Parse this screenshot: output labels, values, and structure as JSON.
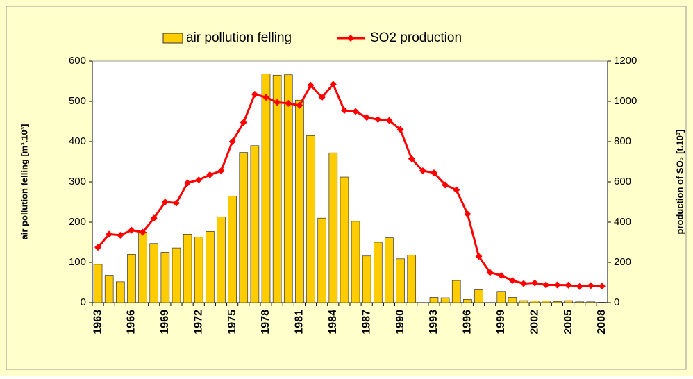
{
  "chart_data": {
    "type": "bar_line",
    "categories": [
      "1963",
      null,
      null,
      "1966",
      null,
      null,
      "1969",
      null,
      null,
      "1972",
      null,
      null,
      "1975",
      null,
      null,
      "1978",
      null,
      null,
      "1981",
      null,
      null,
      "1984",
      null,
      null,
      "1987",
      null,
      null,
      "1990",
      null,
      null,
      "1993",
      null,
      null,
      "1996",
      null,
      null,
      "1999",
      null,
      null,
      "2002",
      null,
      null,
      "2005",
      null,
      null,
      "2008"
    ],
    "series": [
      {
        "name": "air pollution felling",
        "type": "bar",
        "color": "#ffcc00",
        "values": [
          95,
          68,
          52,
          120,
          175,
          147,
          125,
          136,
          170,
          163,
          177,
          213,
          265,
          373,
          390,
          568,
          565,
          566,
          503,
          415,
          210,
          372,
          312,
          202,
          116,
          150,
          161,
          109,
          118,
          0,
          13,
          12,
          55,
          8,
          32,
          0,
          28,
          13,
          5,
          4,
          4,
          3,
          5,
          2,
          2,
          1
        ]
      },
      {
        "name": "SO2 production",
        "type": "line",
        "axis": "y2",
        "color": "#ff0000",
        "values": [
          275,
          340,
          335,
          360,
          350,
          420,
          500,
          495,
          595,
          610,
          635,
          655,
          800,
          895,
          1035,
          1020,
          995,
          990,
          980,
          1080,
          1020,
          1085,
          955,
          950,
          920,
          910,
          905,
          860,
          715,
          655,
          645,
          585,
          560,
          440,
          230,
          150,
          135,
          110,
          95,
          98,
          88,
          88,
          87,
          80,
          85,
          82
        ]
      }
    ],
    "y_label": "air pollution felling  [m³.10³]",
    "y2_label": "production of SO₂ [t.10³]",
    "ylim": [
      0,
      600
    ],
    "yticks": [
      0,
      100,
      200,
      300,
      400,
      500,
      600
    ],
    "y2lim": [
      0,
      1200
    ],
    "y2ticks": [
      0,
      200,
      400,
      600,
      800,
      1000,
      1200
    ],
    "grid": false,
    "legend": "top"
  }
}
